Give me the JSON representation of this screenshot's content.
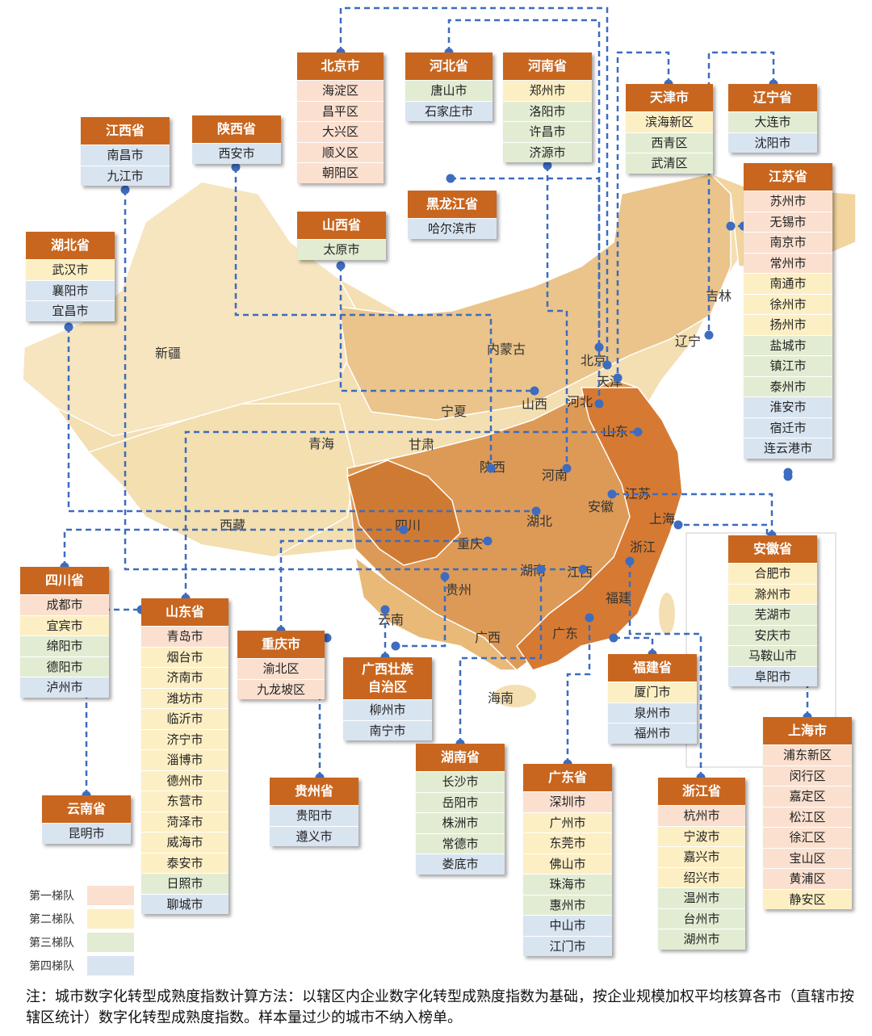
{
  "map": {
    "labels": [
      "新疆",
      "内蒙古",
      "北京",
      "天津",
      "河北",
      "辽宁",
      "吉林",
      "宁夏",
      "山西",
      "山东",
      "青海",
      "甘肃",
      "陕西",
      "河南",
      "江苏",
      "西藏",
      "四川",
      "湖北",
      "安徽",
      "上海",
      "重庆",
      "浙江",
      "湖南",
      "江西",
      "贵州",
      "福建",
      "云南",
      "广西",
      "广东",
      "海南"
    ],
    "tier_colors": {
      "tier1": "#fbe0d0",
      "tier2": "#fdefc4",
      "tier3": "#e2ecd2",
      "tier4": "#d9e4f1"
    },
    "accent": "#c8661f",
    "connector_color": "#3d6cc0"
  },
  "provinces": [
    {
      "name": "北京市",
      "cities": [
        {
          "name": "海淀区",
          "tier": 1
        },
        {
          "name": "昌平区",
          "tier": 1
        },
        {
          "name": "大兴区",
          "tier": 1
        },
        {
          "name": "顺义区",
          "tier": 1
        },
        {
          "name": "朝阳区",
          "tier": 1
        }
      ]
    },
    {
      "name": "河北省",
      "cities": [
        {
          "name": "唐山市",
          "tier": 3
        },
        {
          "name": "石家庄市",
          "tier": 4
        }
      ]
    },
    {
      "name": "河南省",
      "cities": [
        {
          "name": "郑州市",
          "tier": 2
        },
        {
          "name": "洛阳市",
          "tier": 3
        },
        {
          "name": "许昌市",
          "tier": 3
        },
        {
          "name": "济源市",
          "tier": 3
        }
      ]
    },
    {
      "name": "天津市",
      "cities": [
        {
          "name": "滨海新区",
          "tier": 2
        },
        {
          "name": "西青区",
          "tier": 3
        },
        {
          "name": "武清区",
          "tier": 3
        }
      ]
    },
    {
      "name": "辽宁省",
      "cities": [
        {
          "name": "大连市",
          "tier": 3
        },
        {
          "name": "沈阳市",
          "tier": 4
        }
      ]
    },
    {
      "name": "江西省",
      "cities": [
        {
          "name": "南昌市",
          "tier": 4
        },
        {
          "name": "九江市",
          "tier": 4
        }
      ]
    },
    {
      "name": "陕西省",
      "cities": [
        {
          "name": "西安市",
          "tier": 4
        }
      ]
    },
    {
      "name": "黑龙江省",
      "cities": [
        {
          "name": "哈尔滨市",
          "tier": 4
        }
      ]
    },
    {
      "name": "山西省",
      "cities": [
        {
          "name": "太原市",
          "tier": 3
        }
      ]
    },
    {
      "name": "江苏省",
      "cities": [
        {
          "name": "苏州市",
          "tier": 1
        },
        {
          "name": "无锡市",
          "tier": 1
        },
        {
          "name": "南京市",
          "tier": 1
        },
        {
          "name": "常州市",
          "tier": 1
        },
        {
          "name": "南通市",
          "tier": 2
        },
        {
          "name": "徐州市",
          "tier": 2
        },
        {
          "name": "扬州市",
          "tier": 2
        },
        {
          "name": "盐城市",
          "tier": 3
        },
        {
          "name": "镇江市",
          "tier": 3
        },
        {
          "name": "泰州市",
          "tier": 3
        },
        {
          "name": "淮安市",
          "tier": 4
        },
        {
          "name": "宿迁市",
          "tier": 4
        },
        {
          "name": "连云港市",
          "tier": 4
        }
      ]
    },
    {
      "name": "湖北省",
      "cities": [
        {
          "name": "武汉市",
          "tier": 2
        },
        {
          "name": "襄阳市",
          "tier": 4
        },
        {
          "name": "宜昌市",
          "tier": 4
        }
      ]
    },
    {
      "name": "安徽省",
      "cities": [
        {
          "name": "合肥市",
          "tier": 2
        },
        {
          "name": "滁州市",
          "tier": 2
        },
        {
          "name": "芜湖市",
          "tier": 3
        },
        {
          "name": "安庆市",
          "tier": 3
        },
        {
          "name": "马鞍山市",
          "tier": 3
        },
        {
          "name": "阜阳市",
          "tier": 4
        }
      ]
    },
    {
      "name": "四川省",
      "cities": [
        {
          "name": "成都市",
          "tier": 1
        },
        {
          "name": "宜宾市",
          "tier": 2
        },
        {
          "name": "绵阳市",
          "tier": 3
        },
        {
          "name": "德阳市",
          "tier": 3
        },
        {
          "name": "泸州市",
          "tier": 4
        }
      ]
    },
    {
      "name": "山东省",
      "cities": [
        {
          "name": "青岛市",
          "tier": 1
        },
        {
          "name": "烟台市",
          "tier": 2
        },
        {
          "name": "济南市",
          "tier": 2
        },
        {
          "name": "潍坊市",
          "tier": 2
        },
        {
          "name": "临沂市",
          "tier": 2
        },
        {
          "name": "济宁市",
          "tier": 2
        },
        {
          "name": "淄博市",
          "tier": 2
        },
        {
          "name": "德州市",
          "tier": 2
        },
        {
          "name": "东营市",
          "tier": 2
        },
        {
          "name": "菏泽市",
          "tier": 2
        },
        {
          "name": "威海市",
          "tier": 2
        },
        {
          "name": "泰安市",
          "tier": 2
        },
        {
          "name": "日照市",
          "tier": 3
        },
        {
          "name": "聊城市",
          "tier": 4
        }
      ]
    },
    {
      "name": "重庆市",
      "cities": [
        {
          "name": "渝北区",
          "tier": 1
        },
        {
          "name": "九龙坡区",
          "tier": 1
        }
      ]
    },
    {
      "name": "广西壮族自治区",
      "cities": [
        {
          "name": "柳州市",
          "tier": 4
        },
        {
          "name": "南宁市",
          "tier": 4
        }
      ]
    },
    {
      "name": "福建省",
      "cities": [
        {
          "name": "厦门市",
          "tier": 2
        },
        {
          "name": "泉州市",
          "tier": 4
        },
        {
          "name": "福州市",
          "tier": 4
        }
      ]
    },
    {
      "name": "上海市",
      "cities": [
        {
          "name": "浦东新区",
          "tier": 1
        },
        {
          "name": "闵行区",
          "tier": 1
        },
        {
          "name": "嘉定区",
          "tier": 1
        },
        {
          "name": "松江区",
          "tier": 1
        },
        {
          "name": "徐汇区",
          "tier": 1
        },
        {
          "name": "宝山区",
          "tier": 1
        },
        {
          "name": "黄浦区",
          "tier": 1
        },
        {
          "name": "静安区",
          "tier": 2
        }
      ]
    },
    {
      "name": "云南省",
      "cities": [
        {
          "name": "昆明市",
          "tier": 4
        }
      ]
    },
    {
      "name": "贵州省",
      "cities": [
        {
          "name": "贵阳市",
          "tier": 4
        },
        {
          "name": "遵义市",
          "tier": 4
        }
      ]
    },
    {
      "name": "湖南省",
      "cities": [
        {
          "name": "长沙市",
          "tier": 3
        },
        {
          "name": "岳阳市",
          "tier": 3
        },
        {
          "name": "株洲市",
          "tier": 3
        },
        {
          "name": "常德市",
          "tier": 3
        },
        {
          "name": "娄底市",
          "tier": 4
        }
      ]
    },
    {
      "name": "广东省",
      "cities": [
        {
          "name": "深圳市",
          "tier": 1
        },
        {
          "name": "广州市",
          "tier": 2
        },
        {
          "name": "东莞市",
          "tier": 2
        },
        {
          "name": "佛山市",
          "tier": 2
        },
        {
          "name": "珠海市",
          "tier": 3
        },
        {
          "name": "惠州市",
          "tier": 3
        },
        {
          "name": "中山市",
          "tier": 4
        },
        {
          "name": "江门市",
          "tier": 4
        }
      ]
    },
    {
      "name": "浙江省",
      "cities": [
        {
          "name": "杭州市",
          "tier": 1
        },
        {
          "name": "宁波市",
          "tier": 2
        },
        {
          "name": "嘉兴市",
          "tier": 2
        },
        {
          "name": "绍兴市",
          "tier": 2
        },
        {
          "name": "温州市",
          "tier": 3
        },
        {
          "name": "台州市",
          "tier": 3
        },
        {
          "name": "湖州市",
          "tier": 3
        }
      ]
    }
  ],
  "legend": [
    "第一梯队",
    "第二梯队",
    "第三梯队",
    "第四梯队"
  ],
  "note": "注：城市数字化转型成熟度指数计算方法：以辖区内企业数字化转型成熟度指数为基础，按企业规模加权平均核算各市（直辖市按辖区统计）数字化转型成熟度指数。样本量过少的城市不纳入榜单。"
}
